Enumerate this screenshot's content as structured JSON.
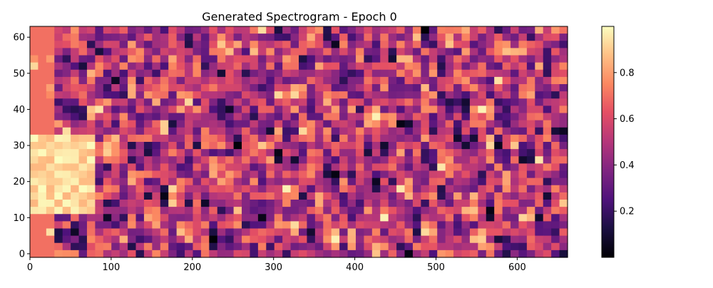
{
  "chart_data": {
    "type": "heatmap",
    "title": "Generated Spectrogram - Epoch 0",
    "xlabel": "",
    "ylabel": "",
    "colormap": "magma",
    "x_range": [
      0,
      662
    ],
    "y_range": [
      0,
      64
    ],
    "x_ticks": [
      0,
      100,
      200,
      300,
      400,
      500,
      600
    ],
    "y_ticks": [
      0,
      10,
      20,
      30,
      40,
      50,
      60
    ],
    "colorbar": {
      "range": [
        0,
        1
      ],
      "ticks": [
        0.2,
        0.4,
        0.6,
        0.8
      ]
    },
    "description_of_values": "values in [0,1]; approximate pattern reproduced procedurally",
    "x_ticks_label": [
      "0",
      "100",
      "200",
      "300",
      "400",
      "500",
      "600"
    ],
    "y_ticks_label": [
      "0",
      "10",
      "20",
      "30",
      "40",
      "50",
      "60"
    ],
    "colorbar_ticks_label": [
      "0.2",
      "0.4",
      "0.6",
      "0.8"
    ]
  }
}
